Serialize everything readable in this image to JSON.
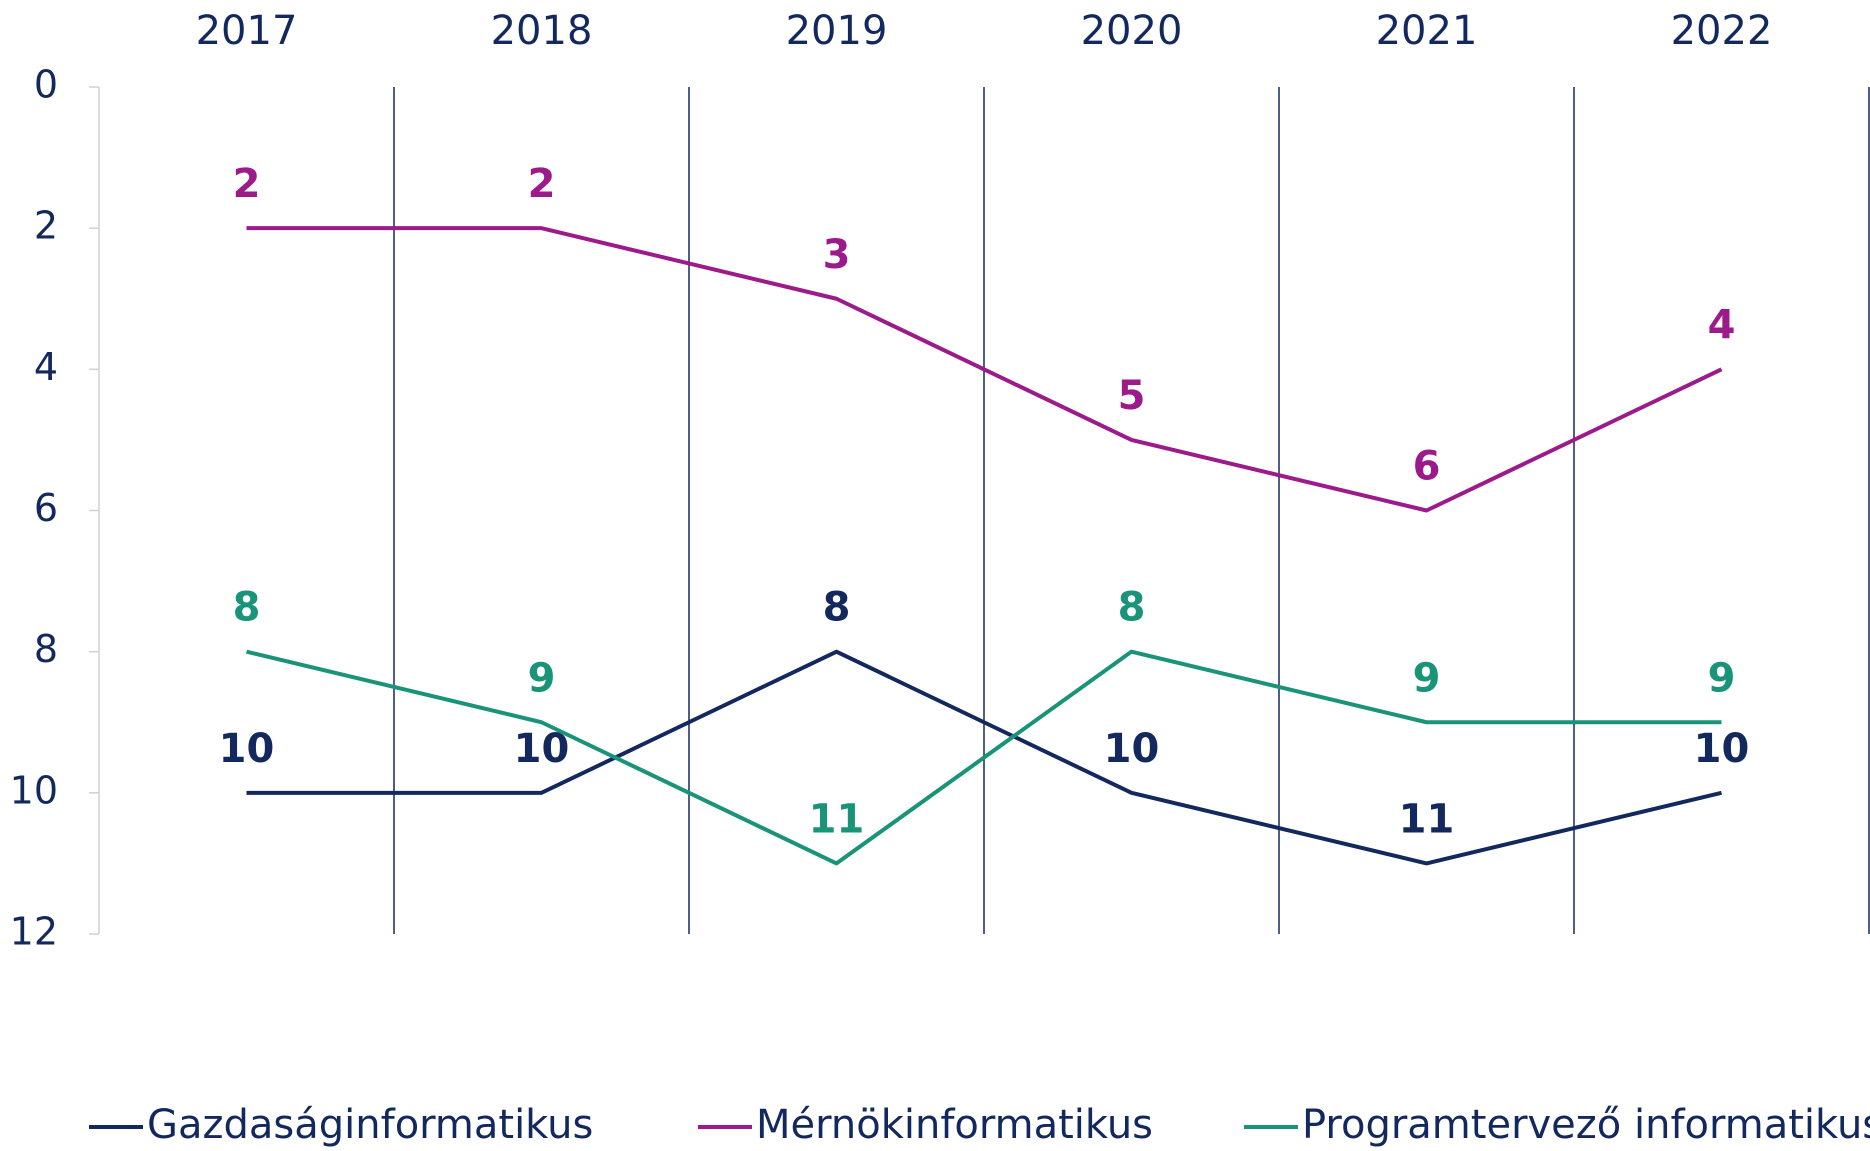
{
  "chart_data": {
    "type": "line",
    "categories": [
      "2017",
      "2018",
      "2019",
      "2020",
      "2021",
      "2022"
    ],
    "series": [
      {
        "name": "Gazdaságinformatikus",
        "color": "#13295e",
        "values": [
          10,
          10,
          8,
          10,
          11,
          10
        ]
      },
      {
        "name": "Mérnökinformatikus",
        "color": "#9c1a8a",
        "values": [
          2,
          2,
          3,
          5,
          6,
          4
        ]
      },
      {
        "name": "Programtervező informatikus",
        "color": "#1a9479",
        "values": [
          8,
          9,
          11,
          8,
          9,
          9
        ]
      }
    ],
    "ylim": [
      0,
      12
    ],
    "yticks": [
      0,
      2,
      4,
      6,
      8,
      10,
      12
    ],
    "y_reversed": true,
    "data_labels": true,
    "legend": "bottom"
  }
}
